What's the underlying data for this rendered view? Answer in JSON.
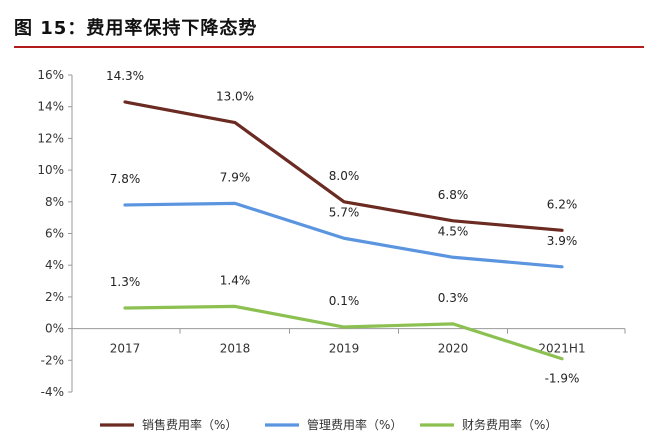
{
  "title": "图 15：费用率保持下降态势",
  "colors": {
    "accent": "#b31c1c"
  },
  "chart_data": {
    "type": "line",
    "categories": [
      "2017",
      "2018",
      "2019",
      "2020",
      "2021H1"
    ],
    "ylim": [
      -4,
      16
    ],
    "yticks": [
      16,
      14,
      12,
      10,
      8,
      6,
      4,
      2,
      0,
      -2,
      -4
    ],
    "ytick_labels": [
      "16%",
      "14%",
      "12%",
      "10%",
      "8%",
      "6%",
      "4%",
      "2%",
      "0%",
      "-2%",
      "-4%"
    ],
    "grid": false,
    "legend": "bottom",
    "series": [
      {
        "name": "销售费用率（%）",
        "color": "#6b2a22",
        "values": [
          14.3,
          13.0,
          8.0,
          6.8,
          6.2
        ],
        "labels": [
          "14.3%",
          "13.0%",
          "8.0%",
          "6.8%",
          "6.2%"
        ]
      },
      {
        "name": "管理费用率（%）",
        "color": "#5b95e0",
        "values": [
          7.8,
          7.9,
          5.7,
          4.5,
          3.9
        ],
        "labels": [
          "7.8%",
          "7.9%",
          "5.7%",
          "4.5%",
          "3.9%"
        ]
      },
      {
        "name": "财务费用率（%）",
        "color": "#8cc152",
        "values": [
          1.3,
          1.4,
          0.1,
          0.3,
          -1.9
        ],
        "labels": [
          "1.3%",
          "1.4%",
          "0.1%",
          "0.3%",
          "-1.9%"
        ]
      }
    ]
  }
}
